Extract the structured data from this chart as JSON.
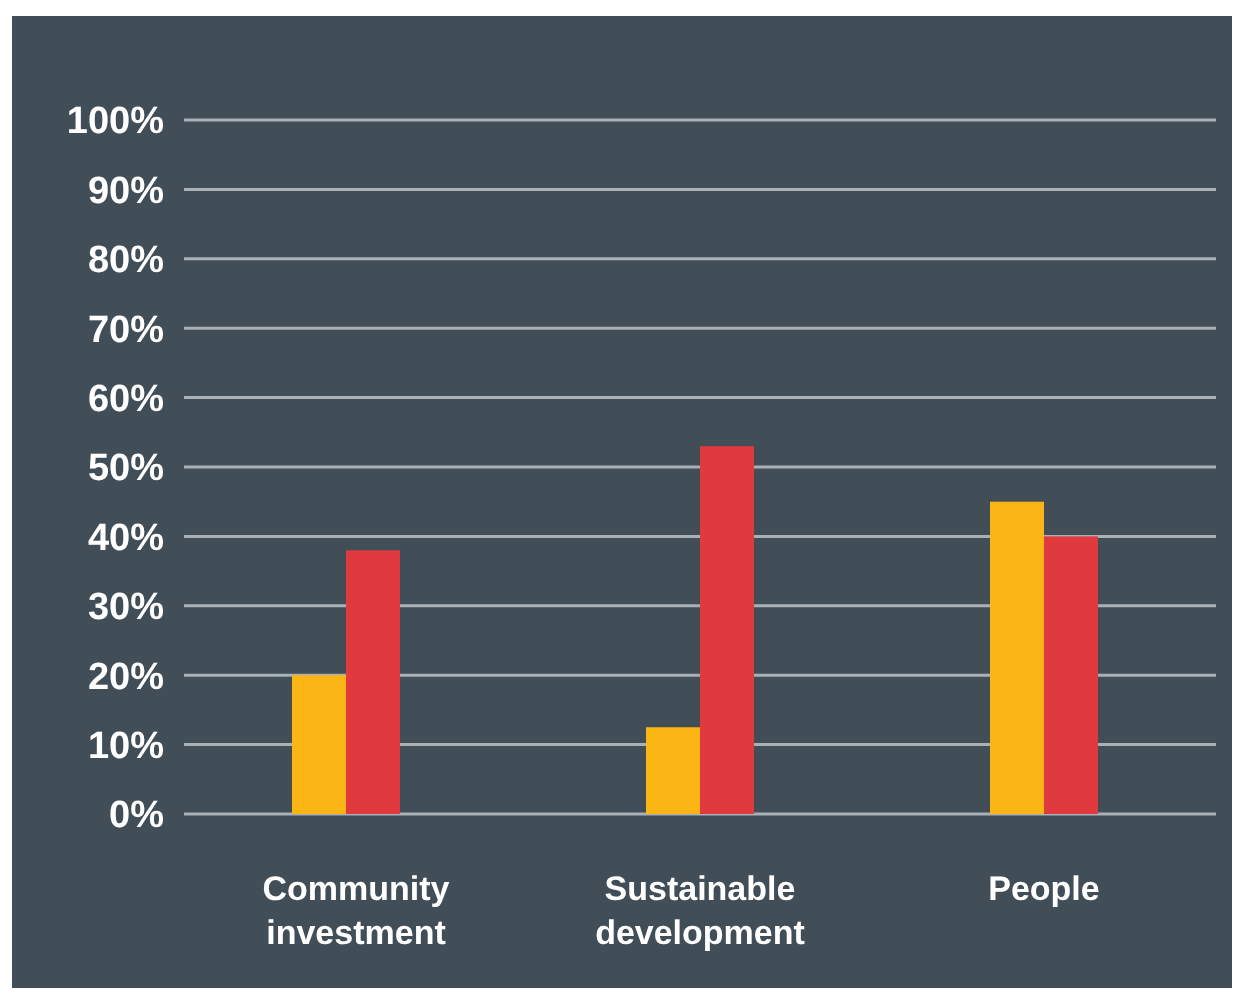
{
  "chart_data": {
    "type": "bar",
    "categories": [
      "Community investment",
      "Sustainable development",
      "People"
    ],
    "series": [
      {
        "color": "#fbb615",
        "values": [
          20,
          12.5,
          45
        ]
      },
      {
        "color": "#e0393e",
        "values": [
          38,
          53,
          40
        ]
      }
    ],
    "ylim": [
      0,
      100
    ],
    "yticks": [
      {
        "value": 0,
        "label": "0%"
      },
      {
        "value": 10,
        "label": "10%"
      },
      {
        "value": 20,
        "label": "20%"
      },
      {
        "value": 30,
        "label": "30%"
      },
      {
        "value": 40,
        "label": "40%"
      },
      {
        "value": 50,
        "label": "50%"
      },
      {
        "value": 60,
        "label": "60%"
      },
      {
        "value": 70,
        "label": "70%"
      },
      {
        "value": 80,
        "label": "80%"
      },
      {
        "value": 90,
        "label": "90%"
      },
      {
        "value": 100,
        "label": "100%"
      }
    ],
    "grid": "y"
  }
}
